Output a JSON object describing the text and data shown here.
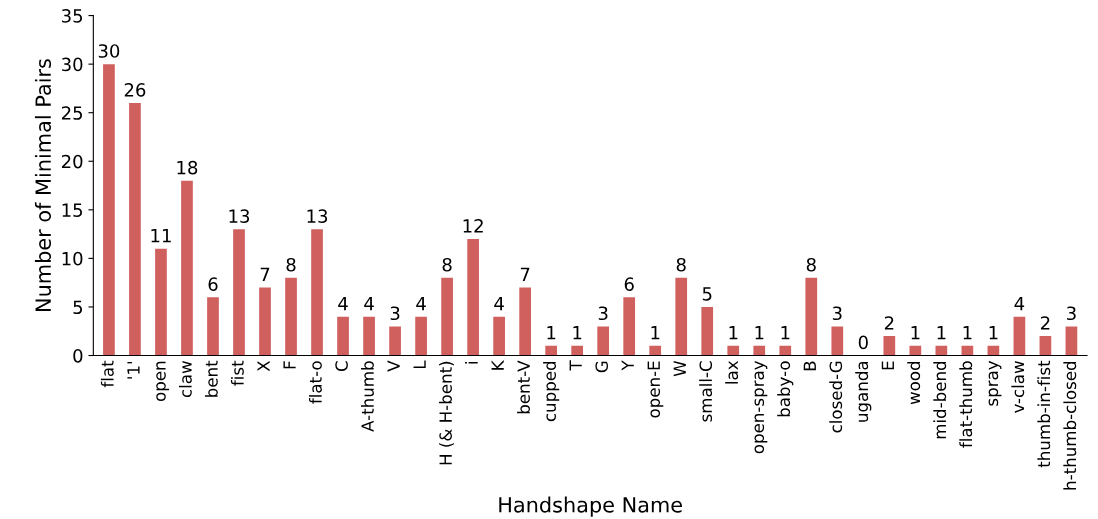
{
  "chart_data": {
    "type": "bar",
    "xlabel": "Handshape Name",
    "ylabel": "Number of Minimal Pairs",
    "categories": [
      "flat",
      "'1'",
      "open",
      "claw",
      "bent",
      "fist",
      "X",
      "F",
      "flat-o",
      "C",
      "A-thumb",
      "V",
      "L",
      "H (& H-bent)",
      "i",
      "K",
      "bent-V",
      "cupped",
      "T",
      "G",
      "Y",
      "open-E",
      "W",
      "small-C",
      "lax",
      "open-spray",
      "baby-o",
      "B",
      "closed-G",
      "uganda",
      "E",
      "wood",
      "mid-bend",
      "flat-thumb",
      "spray",
      "v-claw",
      "thumb-in-fist",
      "h-thumb-closed"
    ],
    "values": [
      30,
      26,
      11,
      18,
      6,
      13,
      7,
      8,
      13,
      4,
      4,
      3,
      4,
      8,
      12,
      4,
      7,
      1,
      1,
      3,
      6,
      1,
      8,
      5,
      1,
      1,
      1,
      8,
      3,
      0,
      2,
      1,
      1,
      1,
      1,
      4,
      2,
      3
    ],
    "color": "#d0605e",
    "ylim": [
      0,
      35
    ],
    "yticks": [
      0,
      5,
      10,
      15,
      20,
      25,
      30,
      35
    ],
    "grid": false,
    "data_labels": true,
    "legend": false
  }
}
